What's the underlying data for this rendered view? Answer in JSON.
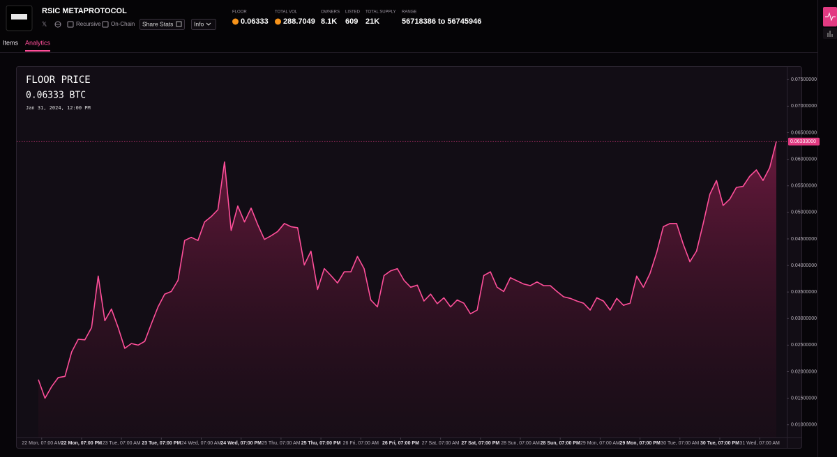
{
  "header": {
    "title": "RSIC METAPROTOCOL",
    "links": [
      "Recursive",
      "On-Chain"
    ],
    "buttons": [
      "Share Stats",
      "Info"
    ],
    "stats": [
      {
        "label": "FLOOR",
        "value": "0.06333",
        "coin": true
      },
      {
        "label": "TOTAL VOL",
        "value": "288.7049",
        "coin": true
      },
      {
        "label": "OWNERS",
        "value": "8.1K"
      },
      {
        "label": "LISTED",
        "value": "609"
      },
      {
        "label": "TOTAL SUPPLY",
        "value": "21K"
      },
      {
        "label": "RANGE",
        "value": "56718386 to 56745946"
      }
    ]
  },
  "tabs": [
    "Items",
    "Analytics"
  ],
  "active_tab": 1,
  "chart_data": {
    "type": "area",
    "title": "FLOOR PRICE",
    "subtitle": "0.06333 BTC",
    "annotation": "Jan 31, 2024, 12:00 PM",
    "color": "#ff4f9a",
    "x": [
      "2024-01-22T06:00",
      "2024-01-22T08:00",
      "2024-01-22T10:00",
      "2024-01-22T12:00",
      "2024-01-22T14:00",
      "2024-01-22T16:00",
      "2024-01-22T18:00",
      "2024-01-22T20:00",
      "2024-01-22T22:00",
      "2024-01-23T00:00",
      "2024-01-23T02:00",
      "2024-01-23T04:00",
      "2024-01-23T06:00",
      "2024-01-23T08:00",
      "2024-01-23T10:00",
      "2024-01-23T12:00",
      "2024-01-23T14:00",
      "2024-01-23T16:00",
      "2024-01-23T18:00",
      "2024-01-23T20:00",
      "2024-01-23T22:00",
      "2024-01-24T00:00",
      "2024-01-24T02:00",
      "2024-01-24T04:00",
      "2024-01-24T06:00",
      "2024-01-24T08:00",
      "2024-01-24T10:00",
      "2024-01-24T12:00",
      "2024-01-24T14:00",
      "2024-01-24T16:00",
      "2024-01-24T18:00",
      "2024-01-24T20:00",
      "2024-01-24T22:00",
      "2024-01-25T00:00",
      "2024-01-25T02:00",
      "2024-01-25T04:00",
      "2024-01-25T06:00",
      "2024-01-25T08:00",
      "2024-01-25T10:00",
      "2024-01-25T12:00",
      "2024-01-25T14:00",
      "2024-01-25T16:00",
      "2024-01-25T18:00",
      "2024-01-25T20:00",
      "2024-01-25T22:00",
      "2024-01-26T00:00",
      "2024-01-26T02:00",
      "2024-01-26T04:00",
      "2024-01-26T06:00",
      "2024-01-26T08:00",
      "2024-01-26T10:00",
      "2024-01-26T12:00",
      "2024-01-26T14:00",
      "2024-01-26T16:00",
      "2024-01-26T18:00",
      "2024-01-26T20:00",
      "2024-01-26T22:00",
      "2024-01-27T00:00",
      "2024-01-27T02:00",
      "2024-01-27T04:00",
      "2024-01-27T06:00",
      "2024-01-27T08:00",
      "2024-01-27T10:00",
      "2024-01-27T12:00",
      "2024-01-27T14:00",
      "2024-01-27T16:00",
      "2024-01-27T18:00",
      "2024-01-27T20:00",
      "2024-01-27T22:00",
      "2024-01-28T00:00",
      "2024-01-28T02:00",
      "2024-01-28T04:00",
      "2024-01-28T06:00",
      "2024-01-28T08:00",
      "2024-01-28T10:00",
      "2024-01-28T12:00",
      "2024-01-28T14:00",
      "2024-01-28T16:00",
      "2024-01-28T18:00",
      "2024-01-28T20:00",
      "2024-01-28T22:00",
      "2024-01-29T00:00",
      "2024-01-29T02:00",
      "2024-01-29T04:00",
      "2024-01-29T06:00",
      "2024-01-29T08:00",
      "2024-01-29T10:00",
      "2024-01-29T12:00",
      "2024-01-29T14:00",
      "2024-01-29T16:00",
      "2024-01-29T18:00",
      "2024-01-29T20:00",
      "2024-01-29T22:00",
      "2024-01-30T00:00",
      "2024-01-30T02:00",
      "2024-01-30T04:00",
      "2024-01-30T06:00",
      "2024-01-30T08:00",
      "2024-01-30T10:00",
      "2024-01-30T12:00",
      "2024-01-30T14:00",
      "2024-01-30T16:00",
      "2024-01-30T18:00",
      "2024-01-30T20:00",
      "2024-01-30T22:00",
      "2024-01-31T00:00",
      "2024-01-31T02:00",
      "2024-01-31T04:00",
      "2024-01-31T06:00",
      "2024-01-31T08:00",
      "2024-01-31T10:00",
      "2024-01-31T12:00"
    ],
    "values": [
      0.0185,
      0.015,
      0.0172,
      0.0189,
      0.0191,
      0.0237,
      0.0261,
      0.026,
      0.0283,
      0.038,
      0.0296,
      0.0318,
      0.0283,
      0.0244,
      0.0253,
      0.025,
      0.0257,
      0.029,
      0.0322,
      0.0346,
      0.0351,
      0.0372,
      0.0447,
      0.0453,
      0.0447,
      0.0482,
      0.0492,
      0.0505,
      0.0595,
      0.0466,
      0.0512,
      0.0482,
      0.0508,
      0.0477,
      0.0449,
      0.0456,
      0.0464,
      0.0479,
      0.0473,
      0.0471,
      0.0401,
      0.0427,
      0.0355,
      0.0394,
      0.0381,
      0.0367,
      0.0388,
      0.0388,
      0.0417,
      0.0394,
      0.0335,
      0.0322,
      0.0381,
      0.039,
      0.0394,
      0.0372,
      0.0359,
      0.0363,
      0.0333,
      0.0346,
      0.0328,
      0.0339,
      0.0322,
      0.0335,
      0.0329,
      0.0309,
      0.0316,
      0.0381,
      0.0388,
      0.0359,
      0.0351,
      0.0377,
      0.0371,
      0.0365,
      0.0362,
      0.0369,
      0.0362,
      0.0362,
      0.0351,
      0.0341,
      0.0338,
      0.0333,
      0.0329,
      0.0316,
      0.0339,
      0.0333,
      0.0316,
      0.0338,
      0.0325,
      0.0329,
      0.038,
      0.0359,
      0.0385,
      0.0424,
      0.0473,
      0.0479,
      0.0479,
      0.044,
      0.0407,
      0.0427,
      0.0479,
      0.0534,
      0.056,
      0.0513,
      0.0525,
      0.0547,
      0.0549,
      0.0568,
      0.058,
      0.056,
      0.0584,
      0.06333
    ],
    "price_line": {
      "value": 0.06333,
      "label": "0.06333000"
    },
    "xlim": [
      "2024-01-22T06:00",
      "2024-01-31T12:00"
    ],
    "xticks": [
      {
        "value": "2024-01-22T07:00",
        "label": "22 Mon, 07:00 AM"
      },
      {
        "value": "2024-01-22T19:00",
        "label": "22 Mon, 07:00 PM"
      },
      {
        "value": "2024-01-23T07:00",
        "label": "23 Tue, 07:00 AM"
      },
      {
        "value": "2024-01-23T19:00",
        "label": "23 Tue, 07:00 PM"
      },
      {
        "value": "2024-01-24T07:00",
        "label": "24 Wed, 07:00 AM"
      },
      {
        "value": "2024-01-24T19:00",
        "label": "24 Wed, 07:00 PM"
      },
      {
        "value": "2024-01-25T07:00",
        "label": "25 Thu, 07:00 AM"
      },
      {
        "value": "2024-01-25T19:00",
        "label": "25 Thu, 07:00 PM"
      },
      {
        "value": "2024-01-26T07:00",
        "label": "26 Fri, 07:00 AM"
      },
      {
        "value": "2024-01-26T19:00",
        "label": "26 Fri, 07:00 PM"
      },
      {
        "value": "2024-01-27T07:00",
        "label": "27 Sat, 07:00 AM"
      },
      {
        "value": "2024-01-27T19:00",
        "label": "27 Sat, 07:00 PM"
      },
      {
        "value": "2024-01-28T07:00",
        "label": "28 Sun, 07:00 AM"
      },
      {
        "value": "2024-01-28T19:00",
        "label": "28 Sun, 07:00 PM"
      },
      {
        "value": "2024-01-29T07:00",
        "label": "29 Mon, 07:00 AM"
      },
      {
        "value": "2024-01-29T19:00",
        "label": "29 Mon, 07:00 PM"
      },
      {
        "value": "2024-01-30T07:00",
        "label": "30 Tue, 07:00 AM"
      },
      {
        "value": "2024-01-30T19:00",
        "label": "30 Tue, 07:00 PM"
      },
      {
        "value": "2024-01-31T07:00",
        "label": "31 Wed, 07:00 AM"
      }
    ],
    "ylim": [
      0.0076,
      0.0774
    ],
    "yticks": [
      {
        "value": 0.075,
        "label": "0.07500000"
      },
      {
        "value": 0.07,
        "label": "0.07000000"
      },
      {
        "value": 0.065,
        "label": "0.06500000"
      },
      {
        "value": 0.06,
        "label": "0.06000000"
      },
      {
        "value": 0.055,
        "label": "0.05500000"
      },
      {
        "value": 0.05,
        "label": "0.05000000"
      },
      {
        "value": 0.045,
        "label": "0.04500000"
      },
      {
        "value": 0.04,
        "label": "0.04000000"
      },
      {
        "value": 0.035,
        "label": "0.03500000"
      },
      {
        "value": 0.03,
        "label": "0.03000000"
      },
      {
        "value": 0.025,
        "label": "0.02500000"
      },
      {
        "value": 0.02,
        "label": "0.02000000"
      },
      {
        "value": 0.015,
        "label": "0.01500000"
      },
      {
        "value": 0.01,
        "label": "0.01000000"
      }
    ]
  }
}
